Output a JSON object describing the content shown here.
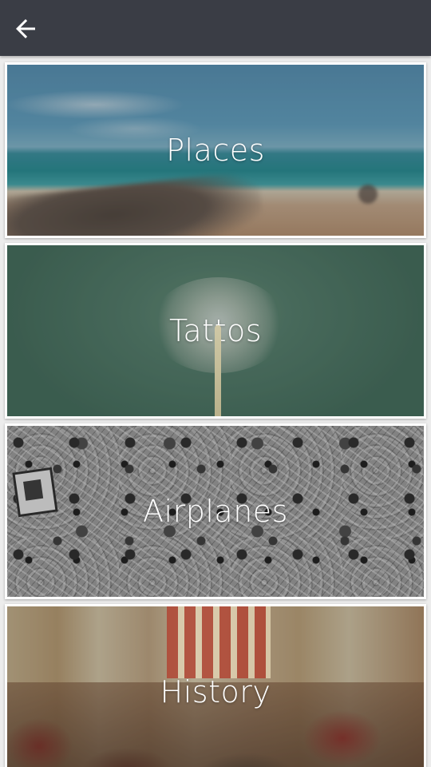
{
  "app_bar": {
    "back_icon": "arrow-back-icon"
  },
  "categories": [
    {
      "label": "Places"
    },
    {
      "label": "Tattos"
    },
    {
      "label": "Airplanes"
    },
    {
      "label": "History"
    }
  ],
  "colors": {
    "app_bar": "#3a3d45",
    "background": "#ececec",
    "label_text": "#ffffff"
  }
}
